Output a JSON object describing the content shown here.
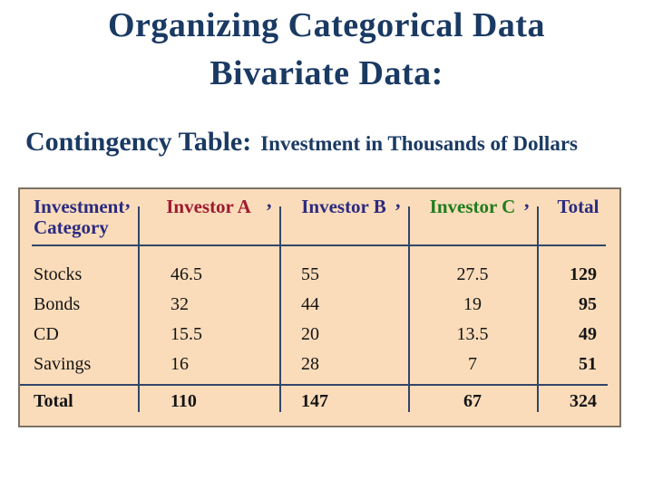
{
  "slide": {
    "title_line1": "Organizing Categorical Data",
    "title_line2": "Bivariate Data:",
    "subtitle_label": "Contingency Table:",
    "subtitle_text": "Investment in Thousands of Dollars"
  },
  "table": {
    "header": {
      "category_line1": "Investment",
      "category_line2": "Category",
      "investor_a": "Investor A",
      "investor_b": "Investor B",
      "investor_c": "Investor C",
      "total": "Total"
    },
    "rows": [
      {
        "category": "Stocks",
        "a": "46.5",
        "b": "55",
        "c": "27.5",
        "total": "129"
      },
      {
        "category": "Bonds",
        "a": "32",
        "b": "44",
        "c": "19",
        "total": "95"
      },
      {
        "category": "CD",
        "a": "15.5",
        "b": "20",
        "c": "13.5",
        "total": "49"
      },
      {
        "category": "Savings",
        "a": "16",
        "b": "28",
        "c": "7",
        "total": "51"
      }
    ],
    "total_row": {
      "category": "Total",
      "a": "110",
      "b": "147",
      "c": "67",
      "total": "324"
    }
  },
  "colors": {
    "title_navy": "#1A3A63",
    "header_navy": "#2B2B80",
    "investor_a_red": "#9E1B30",
    "investor_c_green": "#1E7D1E",
    "body_black": "#141414",
    "table_bg_peach": "#FBDCBA",
    "table_border_gray": "#7B7265",
    "rule_navy": "#32456A"
  }
}
